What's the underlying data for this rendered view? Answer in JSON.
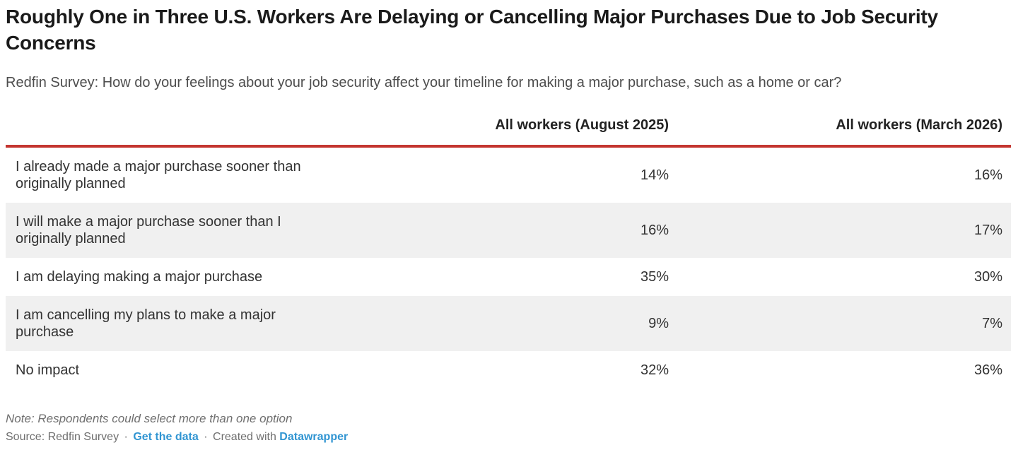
{
  "header": {
    "title": "Roughly One in Three U.S. Workers Are Delaying or Cancelling Major Purchases Due to Job Security Concerns",
    "subtitle": "Redfin Survey: How do your feelings about your job security affect your timeline for making a major purchase, such as a home or car?"
  },
  "table": {
    "columns": [
      "",
      "All workers (August 2025)",
      "All workers (March 2026)"
    ],
    "rows": [
      {
        "label": "I already made a major purchase sooner than originally planned",
        "values": [
          "14%",
          "16%"
        ]
      },
      {
        "label": "I will make a major purchase sooner than I originally planned",
        "values": [
          "16%",
          "17%"
        ]
      },
      {
        "label": "I am delaying making a major purchase",
        "values": [
          "35%",
          "30%"
        ]
      },
      {
        "label": "I am cancelling my plans to make a major purchase",
        "values": [
          "9%",
          "7%"
        ]
      },
      {
        "label": "No impact",
        "values": [
          "32%",
          "36%"
        ]
      }
    ]
  },
  "chart_data": {
    "type": "table",
    "title": "Roughly One in Three U.S. Workers Are Delaying or Cancelling Major Purchases Due to Job Security Concerns",
    "subtitle": "Redfin Survey: How do your feelings about your job security affect your timeline for making a major purchase, such as a home or car?",
    "categories": [
      "I already made a major purchase sooner than originally planned",
      "I will make a major purchase sooner than I originally planned",
      "I am delaying making a major purchase",
      "I am cancelling my plans to make a major purchase",
      "No impact"
    ],
    "series": [
      {
        "name": "All workers (August 2025)",
        "values": [
          14,
          16,
          35,
          9,
          32
        ]
      },
      {
        "name": "All workers (March 2026)",
        "values": [
          16,
          17,
          30,
          7,
          36
        ]
      }
    ],
    "unit": "%",
    "note": "Respondents could select more than one option",
    "source": "Redfin Survey"
  },
  "footer": {
    "note": "Note: Respondents could select more than one option",
    "source_text": "Source: Redfin Survey",
    "separator": "·",
    "get_data_label": "Get the data",
    "created_with_label": "Created with",
    "tool_label": "Datawrapper"
  },
  "colors": {
    "header_rule": "#c43530",
    "alt_row_bg": "#f0f0f0",
    "link": "#3195d2",
    "title_text": "#1a1a1a",
    "body_text": "#333333",
    "muted_text": "#6f6f6f"
  }
}
